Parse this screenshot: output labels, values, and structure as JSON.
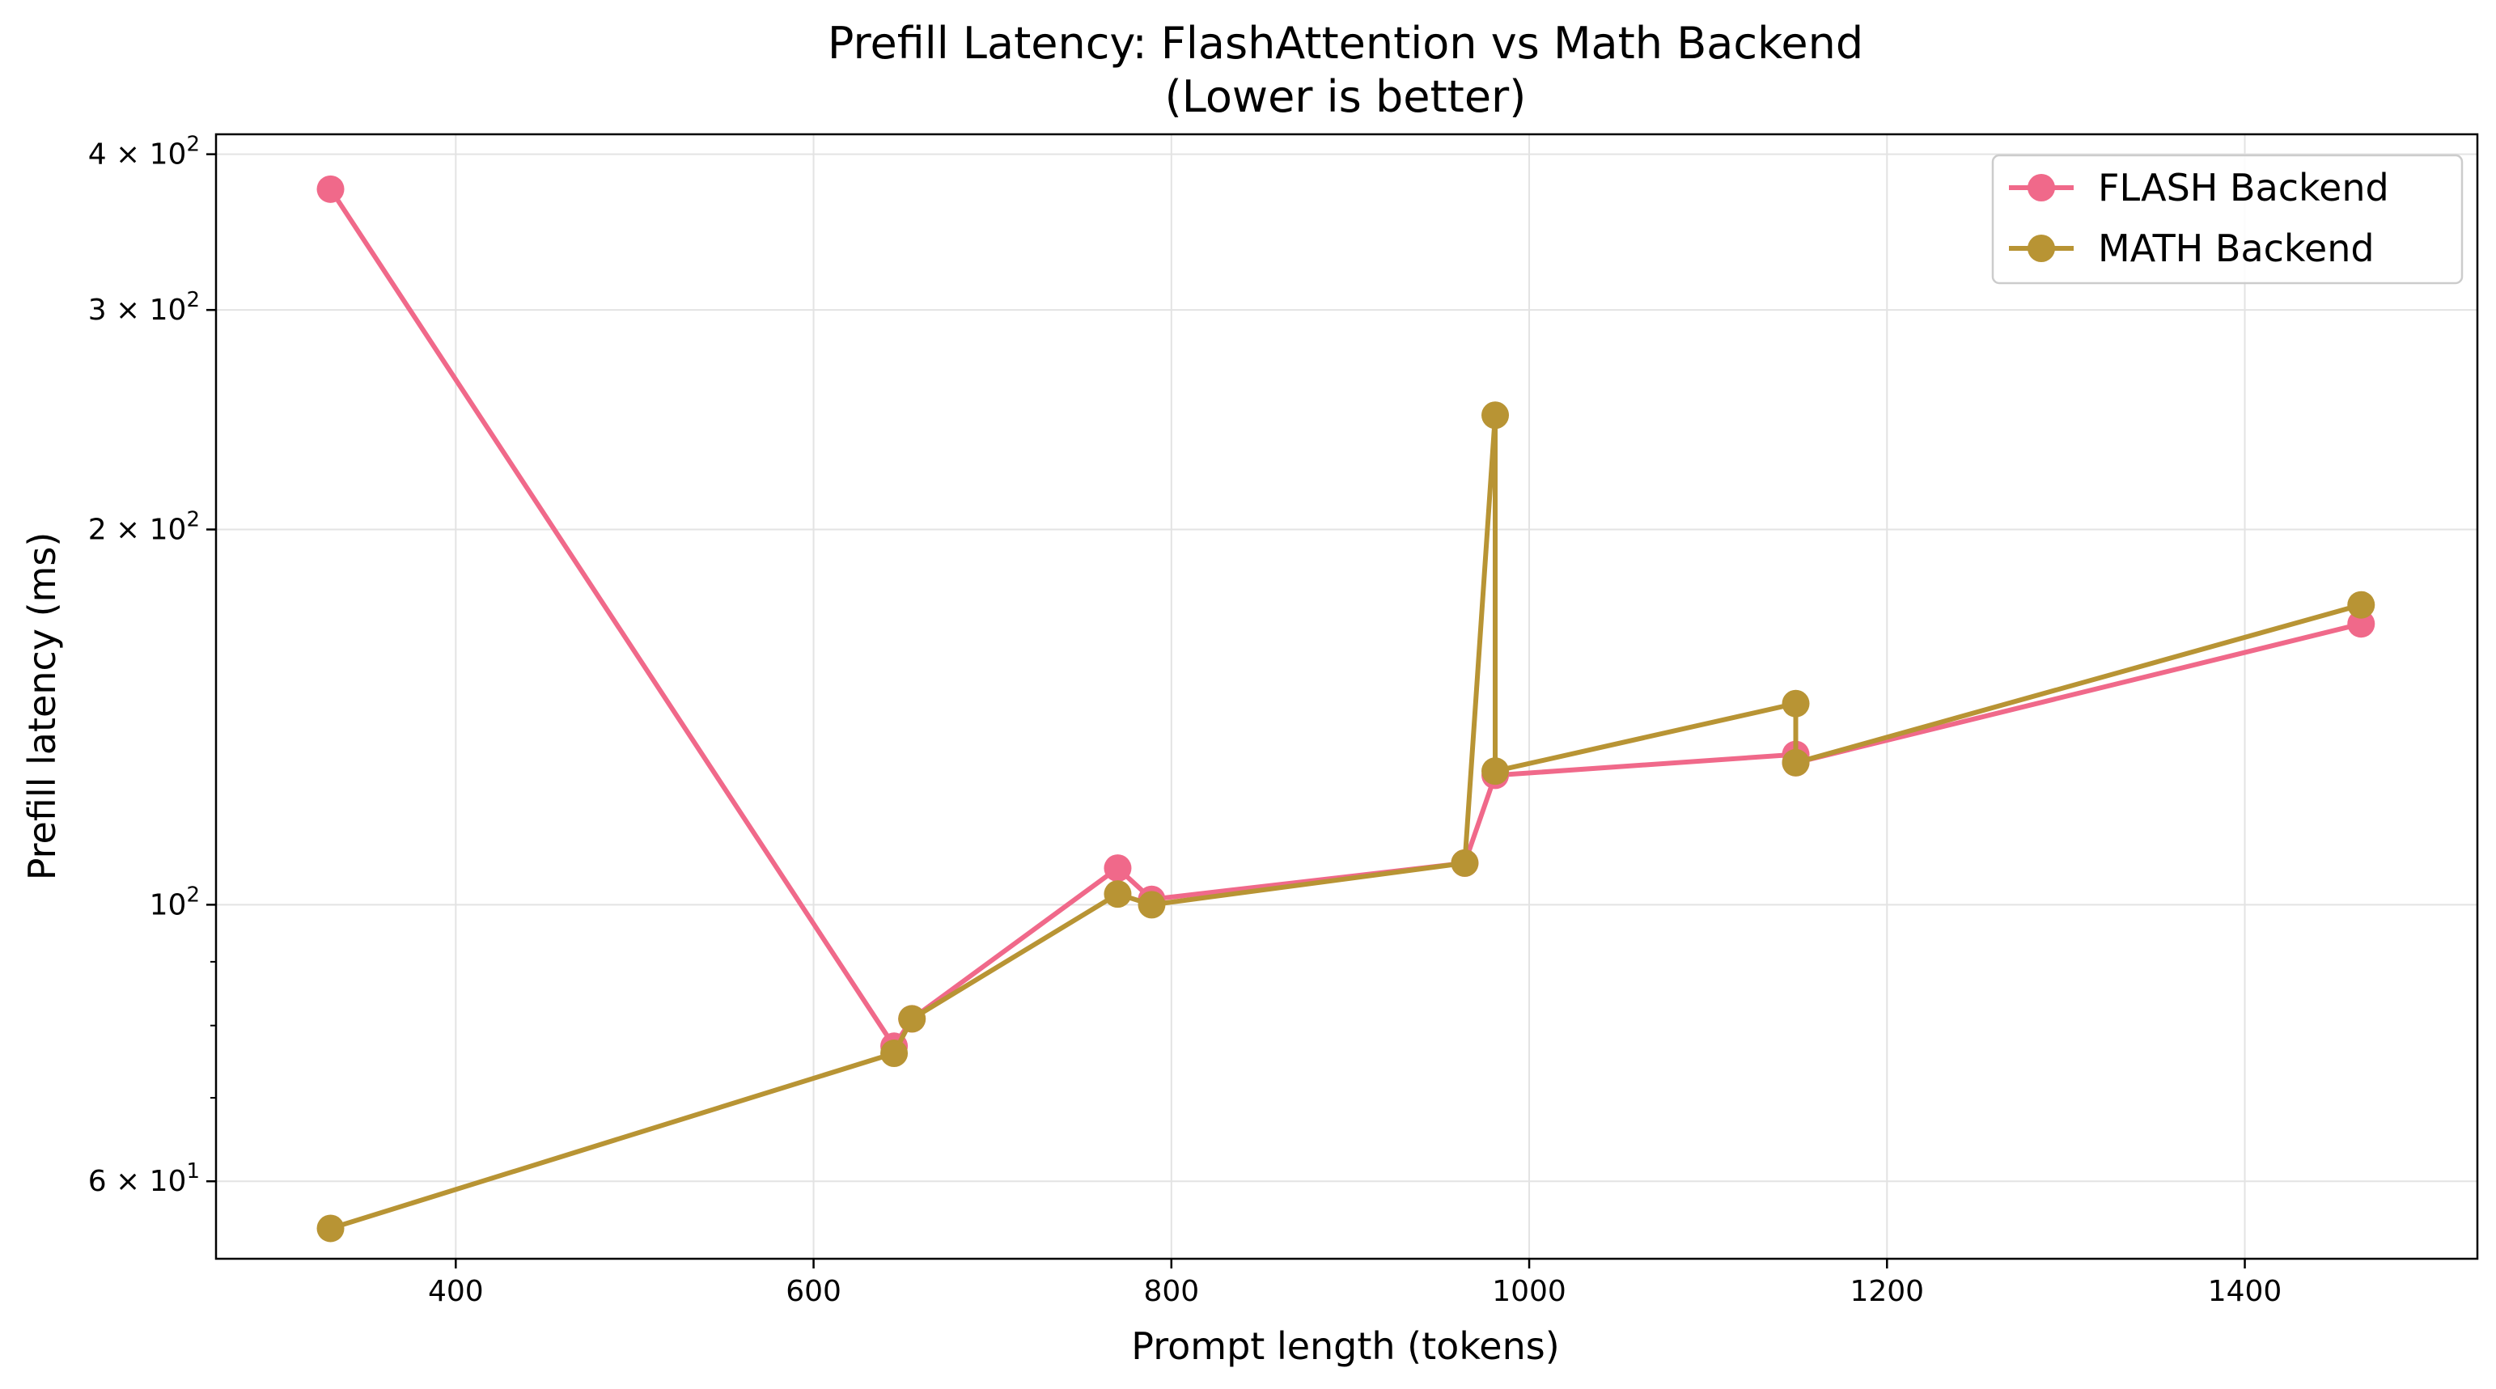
{
  "chart_data": {
    "type": "line",
    "title": "Prefill Latency: FlashAttention vs Math Backend",
    "subtitle": "(Lower is better)",
    "xlabel": "Prompt length (tokens)",
    "ylabel": "Prefill latency (ms)",
    "x_scale": "linear",
    "y_scale": "log",
    "xlim": [
      266,
      1530
    ],
    "ylim": [
      52,
      415
    ],
    "grid": true,
    "legend_position": "upper right",
    "x_ticks": [
      400,
      600,
      800,
      1000,
      1200,
      1400
    ],
    "x_tick_labels": [
      "400",
      "600",
      "800",
      "1000",
      "1200",
      "1400"
    ],
    "y_ticks": [
      {
        "value": 60,
        "mantissa": "6",
        "exp": "1",
        "times": true
      },
      {
        "value": 100,
        "mantissa": "10",
        "exp": "2",
        "times": false
      },
      {
        "value": 200,
        "mantissa": "2",
        "exp": "2",
        "times": true
      },
      {
        "value": 300,
        "mantissa": "3",
        "exp": "2",
        "times": true
      },
      {
        "value": 400,
        "mantissa": "4",
        "exp": "2",
        "times": true
      }
    ],
    "y_minor_ticks": [
      70,
      80,
      90
    ],
    "series": [
      {
        "name": "FLASH Backend",
        "color": "#f0698a",
        "x": [
          330,
          645,
          655,
          770,
          789,
          964,
          981,
          1149,
          1149,
          1465
        ],
        "y": [
          375,
          77,
          81,
          107,
          101,
          108,
          127,
          132,
          130,
          168
        ]
      },
      {
        "name": "MATH Backend",
        "color": "#b89434",
        "x": [
          330,
          645,
          655,
          770,
          789,
          964,
          981,
          981,
          1149,
          1149,
          1465
        ],
        "y": [
          55,
          76,
          81,
          102,
          100,
          108,
          247,
          128,
          145,
          130,
          174
        ]
      }
    ]
  }
}
